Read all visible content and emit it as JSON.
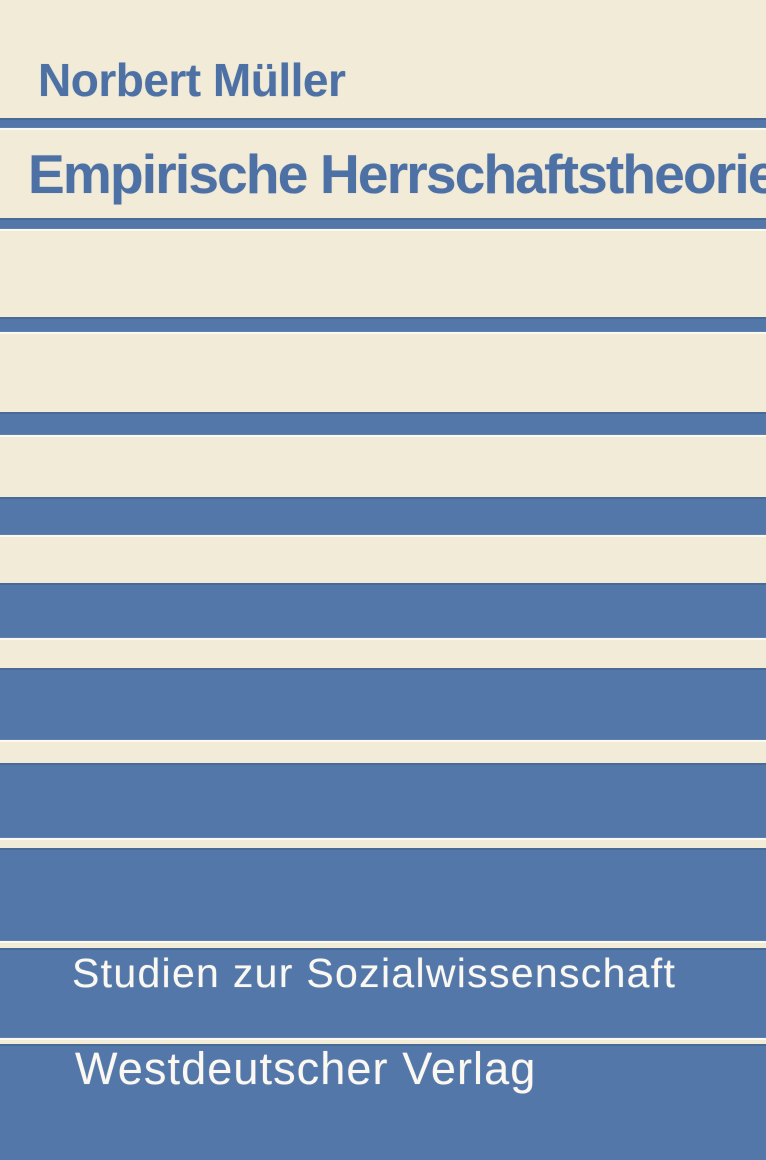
{
  "cover": {
    "author": "Norbert Müller",
    "title": "Empirische Herrschaftstheorie",
    "series": "Studien zur Sozialwissenschaft",
    "publisher": "Westdeutscher Verlag"
  },
  "colors": {
    "blue": "#5377a9",
    "cream": "#f2ebd8",
    "text-blue": "#4d71a5",
    "text-white": "#faf8f1"
  }
}
